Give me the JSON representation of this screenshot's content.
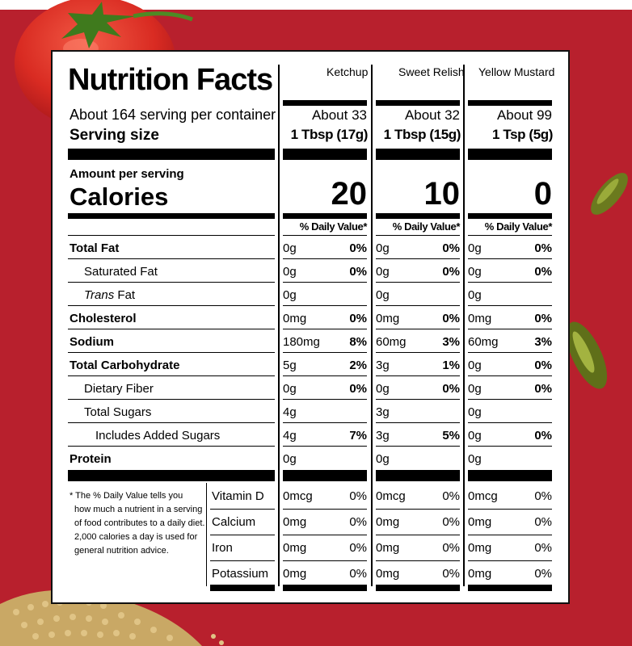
{
  "colors": {
    "background": "#b8202d",
    "panel": "#ffffff",
    "ink": "#000000"
  },
  "decor": {
    "tomato": "tomato-image",
    "pickle": "pickle-image",
    "seeds": "mustard-seeds-image"
  },
  "label": {
    "title": "Nutrition Facts",
    "servings_per_container": "About 164 serving per container",
    "serving_size_label": "Serving size",
    "amount_per_serving": "Amount per serving",
    "calories_label": "Calories",
    "daily_value_header": "% Daily Value*",
    "products": [
      {
        "name": "Ketchup",
        "servings": "About 33",
        "serving_size": "1 Tbsp (17g)",
        "calories": "20"
      },
      {
        "name": "Sweet Relish",
        "servings": "About 32",
        "serving_size": "1 Tbsp (15g)",
        "calories": "10"
      },
      {
        "name": "Yellow Mustard",
        "servings": "About 99",
        "serving_size": "1 Tsp (5g)",
        "calories": "0"
      }
    ],
    "nutrients": [
      {
        "name": "Total Fat",
        "values": [
          [
            "0g",
            "0%"
          ],
          [
            "0g",
            "0%"
          ],
          [
            "0g",
            "0%"
          ]
        ]
      },
      {
        "name": "Saturated Fat",
        "values": [
          [
            "0g",
            "0%"
          ],
          [
            "0g",
            "0%"
          ],
          [
            "0g",
            "0%"
          ]
        ]
      },
      {
        "name": "Trans",
        "suffix": " Fat",
        "values": [
          [
            "0g",
            ""
          ],
          [
            "0g",
            ""
          ],
          [
            "0g",
            ""
          ]
        ]
      },
      {
        "name": "Cholesterol",
        "values": [
          [
            "0mg",
            "0%"
          ],
          [
            "0mg",
            "0%"
          ],
          [
            "0mg",
            "0%"
          ]
        ]
      },
      {
        "name": "Sodium",
        "values": [
          [
            "180mg",
            "8%"
          ],
          [
            "60mg",
            "3%"
          ],
          [
            "60mg",
            "3%"
          ]
        ]
      },
      {
        "name": "Total Carbohydrate",
        "values": [
          [
            "5g",
            "2%"
          ],
          [
            "3g",
            "1%"
          ],
          [
            "0g",
            "0%"
          ]
        ]
      },
      {
        "name": "Dietary Fiber",
        "values": [
          [
            "0g",
            "0%"
          ],
          [
            "0g",
            "0%"
          ],
          [
            "0g",
            "0%"
          ]
        ]
      },
      {
        "name": "Total Sugars",
        "values": [
          [
            "4g",
            ""
          ],
          [
            "3g",
            ""
          ],
          [
            "0g",
            ""
          ]
        ]
      },
      {
        "name": "Includes Added Sugars",
        "values": [
          [
            "4g",
            "7%"
          ],
          [
            "3g",
            "5%"
          ],
          [
            "0g",
            "0%"
          ]
        ]
      },
      {
        "name": "Protein",
        "values": [
          [
            "0g",
            ""
          ],
          [
            "0g",
            ""
          ],
          [
            "0g",
            ""
          ]
        ]
      }
    ],
    "footnote": [
      "* The % Daily Value tells you",
      "how much a nutrient in a serving",
      "of food contributes to a daily diet.",
      "2,000 calories a day is used for",
      "general nutrition advice."
    ],
    "vitamins": [
      {
        "name": "Vitamin D",
        "values": [
          [
            "0mcg",
            "0%"
          ],
          [
            "0mcg",
            "0%"
          ],
          [
            "0mcg",
            "0%"
          ]
        ]
      },
      {
        "name": "Calcium",
        "values": [
          [
            "0mg",
            "0%"
          ],
          [
            "0mg",
            "0%"
          ],
          [
            "0mg",
            "0%"
          ]
        ]
      },
      {
        "name": "Iron",
        "values": [
          [
            "0mg",
            "0%"
          ],
          [
            "0mg",
            "0%"
          ],
          [
            "0mg",
            "0%"
          ]
        ]
      },
      {
        "name": "Potassium",
        "values": [
          [
            "0mg",
            "0%"
          ],
          [
            "0mg",
            "0%"
          ],
          [
            "0mg",
            "0%"
          ]
        ]
      }
    ]
  }
}
